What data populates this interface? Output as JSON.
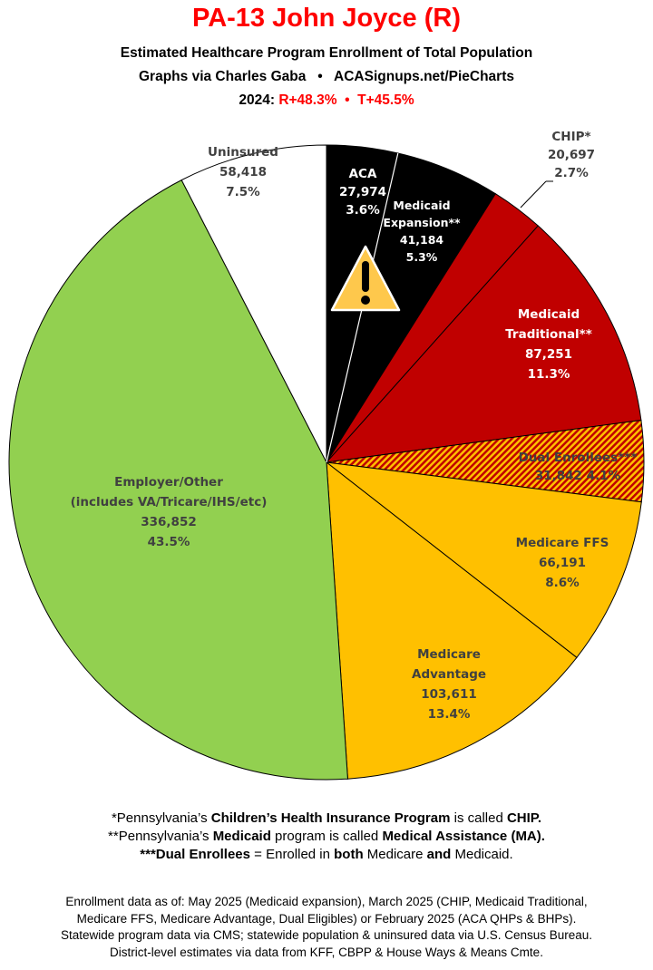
{
  "header": {
    "title": "PA-13 John Joyce (R)",
    "subtitle": "Estimated Healthcare Program Enrollment of Total Population",
    "credit": "Graphs via Charles Gaba   •   ACASignups.net/PieCharts",
    "margin_prefix": "2024: ",
    "margin_values": "R+48.3%  •  T+45.5%"
  },
  "chart_data": {
    "type": "pie",
    "start": "top",
    "direction": "clockwise",
    "slices": [
      {
        "label": "ACA",
        "value": 27974,
        "value_text": "27,974",
        "percent": "3.6%",
        "color": "#000000"
      },
      {
        "label": "Medicaid Expansion**",
        "value": 41184,
        "value_text": "41,184",
        "percent": "5.3%",
        "color": "#000000"
      },
      {
        "label": "CHIP*",
        "value": 20697,
        "value_text": "20,697",
        "percent": "2.7%",
        "color": "#c00000"
      },
      {
        "label": "Medicaid Traditional**",
        "value": 87251,
        "value_text": "87,251",
        "percent": "11.3%",
        "color": "#c00000"
      },
      {
        "label": "Dual Enrollees***",
        "value": 31842,
        "value_text": "31,842",
        "percent": "4.1%",
        "color": "hatch #c00000/#ffc000"
      },
      {
        "label": "Medicare FFS",
        "value": 66191,
        "value_text": "66,191",
        "percent": "8.6%",
        "color": "#ffc000"
      },
      {
        "label": "Medicare Advantage",
        "value": 103611,
        "value_text": "103,611",
        "percent": "13.4%",
        "color": "#ffc000"
      },
      {
        "label": "Employer/Other",
        "sublabel": "(includes VA/Tricare/IHS/etc)",
        "value": 336852,
        "value_text": "336,852",
        "percent": "43.5%",
        "color": "#92d050"
      },
      {
        "label": "Uninsured",
        "value": 58418,
        "value_text": "58,418",
        "percent": "7.5%",
        "color": "#ffffff"
      }
    ],
    "label_lines": {
      "medicaid_exp": [
        "Medicaid",
        "Expansion**"
      ],
      "medicaid_trad": [
        "Medicaid",
        "Traditional**"
      ],
      "medicare_adv": [
        "Medicare",
        "Advantage"
      ]
    },
    "annotation_icon": "warning-triangle-icon"
  },
  "notes": [
    [
      {
        "t": "*Pennsylvania’s ",
        "b": false
      },
      {
        "t": "Children’s Health Insurance Program",
        "b": true
      },
      {
        "t": " is called ",
        "b": false
      },
      {
        "t": "CHIP.",
        "b": true
      }
    ],
    [
      {
        "t": "**Pennsylvania’s ",
        "b": false
      },
      {
        "t": "Medicaid",
        "b": true
      },
      {
        "t": " program is called ",
        "b": false
      },
      {
        "t": "Medical Assistance (MA).",
        "b": true
      }
    ],
    [
      {
        "t": "***Dual Enrollees",
        "b": true
      },
      {
        "t": " = Enrolled in ",
        "b": false
      },
      {
        "t": "both",
        "b": true
      },
      {
        "t": " Medicare ",
        "b": false
      },
      {
        "t": "and",
        "b": true
      },
      {
        "t": " Medicaid.",
        "b": false
      }
    ]
  ],
  "sources": [
    "Enrollment data as of: May 2025 (Medicaid expansion), March 2025 (CHIP, Medicaid Traditional,",
    "Medicare FFS, Medicare Advantage, Dual Eligibles) or February 2025 (ACA QHPs & BHPs).",
    "Statewide program data via CMS; statewide population & uninsured data via U.S. Census Bureau.",
    "District-level estimates via data from KFF, CBPP & House Ways & Means Cmte."
  ]
}
